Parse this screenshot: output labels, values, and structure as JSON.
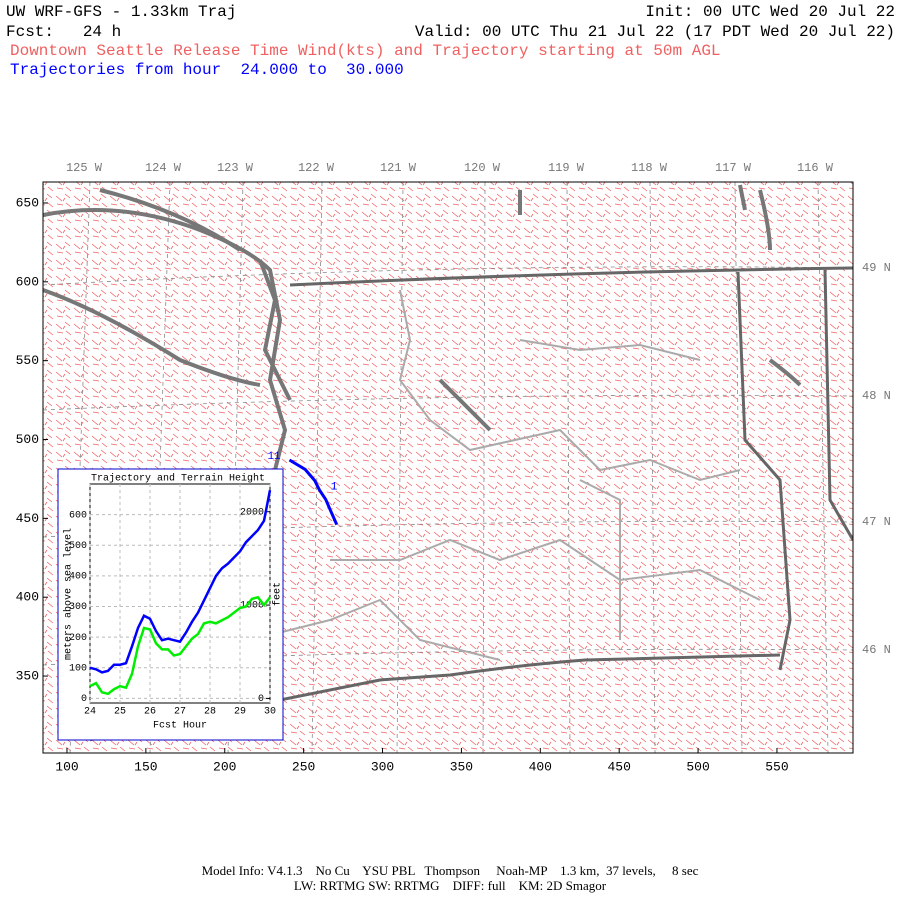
{
  "header": {
    "title": "UW WRF-GFS - 1.33km Traj",
    "init": "Init: 00 UTC Wed 20 Jul 22",
    "forecast": "Fcst:   24 h",
    "valid": "Valid: 00 UTC Thu 21 Jul 22 (17 PDT Wed 20 Jul 22)",
    "subtitle": "Downtown Seattle Release Time Wind(kts) and Trajectory starting at 50m AGL",
    "trajectory_hours": "Trajectories from hour  24.000 to  30.000"
  },
  "map": {
    "xlim": [
      84.8,
      598.2
    ],
    "ylim": [
      301.2,
      663.3
    ],
    "xticks": [
      100,
      150,
      200,
      250,
      300,
      350,
      400,
      450,
      500,
      550
    ],
    "yticks": [
      350,
      400,
      450,
      500,
      550,
      600,
      650
    ],
    "longitude_labels": [
      "125 W",
      "124 W",
      "123 W",
      "122 W",
      "121 W",
      "120 W",
      "119 W",
      "118 W",
      "117 W",
      "116 W"
    ],
    "latitude_labels": [
      "49 N",
      "48 N",
      "47 N",
      "46 N"
    ],
    "trajectory": {
      "color": "#0000ff",
      "x": [
        241,
        251,
        257,
        260,
        264,
        267,
        271
      ],
      "y": [
        487,
        481,
        474,
        468,
        462,
        455,
        446
      ]
    },
    "annotations": [
      "11",
      "1"
    ]
  },
  "chart_data": {
    "type": "line",
    "title": "Trajectory and Terrain Height",
    "xlabel": "Fcst Hour",
    "ylabel": "meters above sea level",
    "y2label": "feet",
    "x": [
      24.0,
      24.2,
      24.4,
      24.6,
      24.8,
      25.0,
      25.2,
      25.4,
      25.6,
      25.8,
      26.0,
      26.2,
      26.4,
      26.6,
      26.8,
      27.0,
      27.2,
      27.4,
      27.6,
      27.8,
      28.0,
      28.2,
      28.4,
      28.6,
      28.8,
      29.0,
      29.2,
      29.4,
      29.6,
      29.8,
      30.0
    ],
    "series": [
      {
        "color": "#0000ff",
        "values": [
          100,
          95,
          85,
          90,
          110,
          110,
          115,
          170,
          230,
          270,
          260,
          220,
          190,
          195,
          190,
          185,
          215,
          250,
          280,
          320,
          360,
          400,
          425,
          440,
          460,
          480,
          510,
          530,
          550,
          580,
          680
        ]
      },
      {
        "color": "#00ee00",
        "values": [
          40,
          50,
          20,
          15,
          30,
          40,
          35,
          80,
          170,
          230,
          225,
          180,
          160,
          160,
          140,
          145,
          170,
          195,
          210,
          245,
          250,
          245,
          255,
          265,
          280,
          295,
          300,
          325,
          330,
          305,
          330
        ]
      }
    ],
    "xlim": [
      24,
      30
    ],
    "ylim": [
      -15,
      700
    ],
    "y2lim": [
      -49,
      2297
    ],
    "xticks": [
      24,
      25,
      26,
      27,
      28,
      29,
      30
    ],
    "yticks": [
      0,
      100,
      200,
      300,
      400,
      500,
      600
    ],
    "y2ticks": [
      0,
      1000,
      2000
    ],
    "grid": true
  },
  "footer": {
    "line1": "Model Info: V4.1.3    No Cu    YSU PBL   Thompson     Noah-MP    1.3 km,  37 levels,     8 sec",
    "line2": "LW: RRTMG SW: RRTMG    DIFF: full    KM: 2D Smagor"
  }
}
